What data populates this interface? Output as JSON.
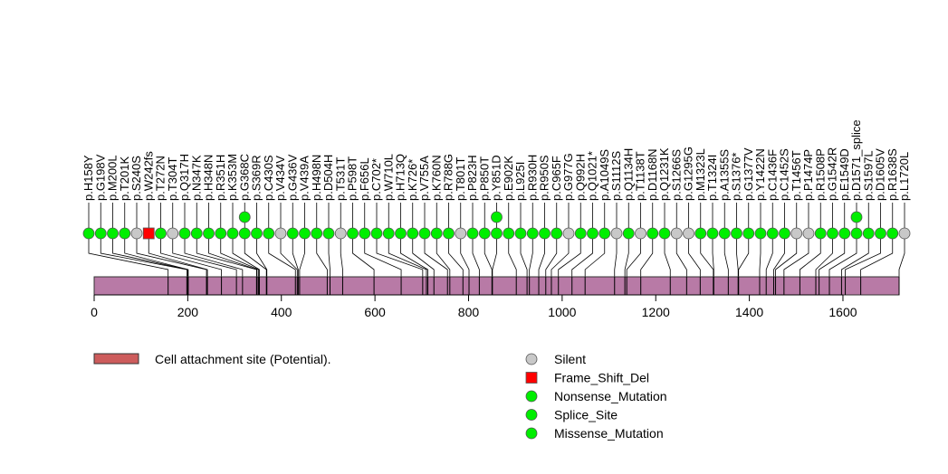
{
  "chart_data": {
    "type": "lollipop",
    "protein_length": 1720,
    "axis": {
      "min": 0,
      "max": 1720,
      "ticks": [
        0,
        200,
        400,
        600,
        800,
        1000,
        1200,
        1400,
        1600
      ]
    },
    "colors": {
      "protein_bar": "#b87aa6",
      "domain": "#cd5c5c",
      "Silent": "#c8c8c8",
      "Frame_Shift_Del": "#ff0000",
      "Nonsense_Mutation": "#00ee00",
      "Splice_Site": "#00ee00",
      "Missense_Mutation": "#00ee00"
    },
    "domains": [
      {
        "name": "Cell attachment site (Potential).",
        "start": 1,
        "end": 1720
      }
    ],
    "mutations": [
      {
        "label": "p.H158Y",
        "pos": 158,
        "type": "Missense_Mutation",
        "stack": 1
      },
      {
        "label": "p.G198V",
        "pos": 198,
        "type": "Missense_Mutation",
        "stack": 1
      },
      {
        "label": "p.M200L",
        "pos": 200,
        "type": "Missense_Mutation",
        "stack": 1
      },
      {
        "label": "p.T201K",
        "pos": 201,
        "type": "Missense_Mutation",
        "stack": 1
      },
      {
        "label": "p.S240S",
        "pos": 240,
        "type": "Silent",
        "stack": 1
      },
      {
        "label": "p.W242fs",
        "pos": 242,
        "type": "Frame_Shift_Del",
        "stack": 1
      },
      {
        "label": "p.T272N",
        "pos": 272,
        "type": "Missense_Mutation",
        "stack": 1
      },
      {
        "label": "p.T304T",
        "pos": 304,
        "type": "Silent",
        "stack": 1
      },
      {
        "label": "p.Q317H",
        "pos": 317,
        "type": "Missense_Mutation",
        "stack": 1
      },
      {
        "label": "p.N347K",
        "pos": 347,
        "type": "Missense_Mutation",
        "stack": 1
      },
      {
        "label": "p.H348N",
        "pos": 348,
        "type": "Missense_Mutation",
        "stack": 1
      },
      {
        "label": "p.R351H",
        "pos": 351,
        "type": "Missense_Mutation",
        "stack": 1
      },
      {
        "label": "p.K353M",
        "pos": 353,
        "type": "Missense_Mutation",
        "stack": 1
      },
      {
        "label": "p.G368C",
        "pos": 368,
        "type": "Missense_Mutation",
        "stack": 2
      },
      {
        "label": "p.S369R",
        "pos": 369,
        "type": "Missense_Mutation",
        "stack": 1
      },
      {
        "label": "p.C430S",
        "pos": 430,
        "type": "Missense_Mutation",
        "stack": 1
      },
      {
        "label": "p.V434V",
        "pos": 434,
        "type": "Silent",
        "stack": 1
      },
      {
        "label": "p.G436V",
        "pos": 436,
        "type": "Missense_Mutation",
        "stack": 1
      },
      {
        "label": "p.V439A",
        "pos": 439,
        "type": "Missense_Mutation",
        "stack": 1
      },
      {
        "label": "p.H498N",
        "pos": 498,
        "type": "Missense_Mutation",
        "stack": 1
      },
      {
        "label": "p.D504H",
        "pos": 504,
        "type": "Missense_Mutation",
        "stack": 1
      },
      {
        "label": "p.T531T",
        "pos": 531,
        "type": "Silent",
        "stack": 1
      },
      {
        "label": "p.P598T",
        "pos": 598,
        "type": "Missense_Mutation",
        "stack": 1
      },
      {
        "label": "p.F656L",
        "pos": 656,
        "type": "Missense_Mutation",
        "stack": 1
      },
      {
        "label": "p.C702*",
        "pos": 702,
        "type": "Nonsense_Mutation",
        "stack": 1
      },
      {
        "label": "p.W710L",
        "pos": 710,
        "type": "Missense_Mutation",
        "stack": 1
      },
      {
        "label": "p.H713Q",
        "pos": 713,
        "type": "Missense_Mutation",
        "stack": 1
      },
      {
        "label": "p.K726*",
        "pos": 726,
        "type": "Nonsense_Mutation",
        "stack": 1
      },
      {
        "label": "p.V755A",
        "pos": 755,
        "type": "Missense_Mutation",
        "stack": 1
      },
      {
        "label": "p.K760N",
        "pos": 760,
        "type": "Missense_Mutation",
        "stack": 1
      },
      {
        "label": "p.R788G",
        "pos": 788,
        "type": "Missense_Mutation",
        "stack": 1
      },
      {
        "label": "p.T801T",
        "pos": 801,
        "type": "Silent",
        "stack": 1
      },
      {
        "label": "p.P823H",
        "pos": 823,
        "type": "Missense_Mutation",
        "stack": 1
      },
      {
        "label": "p.P850T",
        "pos": 850,
        "type": "Missense_Mutation",
        "stack": 1
      },
      {
        "label": "p.Y851D",
        "pos": 851,
        "type": "Missense_Mutation",
        "stack": 2
      },
      {
        "label": "p.E902K",
        "pos": 902,
        "type": "Missense_Mutation",
        "stack": 1
      },
      {
        "label": "p.L925I",
        "pos": 925,
        "type": "Missense_Mutation",
        "stack": 1
      },
      {
        "label": "p.R930H",
        "pos": 930,
        "type": "Missense_Mutation",
        "stack": 1
      },
      {
        "label": "p.R950S",
        "pos": 950,
        "type": "Missense_Mutation",
        "stack": 1
      },
      {
        "label": "p.C965F",
        "pos": 965,
        "type": "Missense_Mutation",
        "stack": 1
      },
      {
        "label": "p.G977G",
        "pos": 977,
        "type": "Silent",
        "stack": 1
      },
      {
        "label": "p.Q992H",
        "pos": 992,
        "type": "Missense_Mutation",
        "stack": 1
      },
      {
        "label": "p.Q1021*",
        "pos": 1021,
        "type": "Nonsense_Mutation",
        "stack": 1
      },
      {
        "label": "p.A1049S",
        "pos": 1049,
        "type": "Missense_Mutation",
        "stack": 1
      },
      {
        "label": "p.S1112S",
        "pos": 1112,
        "type": "Silent",
        "stack": 1
      },
      {
        "label": "p.Q1134H",
        "pos": 1134,
        "type": "Missense_Mutation",
        "stack": 1
      },
      {
        "label": "p.T1138T",
        "pos": 1138,
        "type": "Silent",
        "stack": 1
      },
      {
        "label": "p.D1168N",
        "pos": 1168,
        "type": "Missense_Mutation",
        "stack": 1
      },
      {
        "label": "p.Q1231K",
        "pos": 1231,
        "type": "Missense_Mutation",
        "stack": 1
      },
      {
        "label": "p.S1266S",
        "pos": 1266,
        "type": "Silent",
        "stack": 1
      },
      {
        "label": "p.G1295G",
        "pos": 1295,
        "type": "Silent",
        "stack": 1
      },
      {
        "label": "p.M1323L",
        "pos": 1323,
        "type": "Missense_Mutation",
        "stack": 1
      },
      {
        "label": "p.T1324I",
        "pos": 1324,
        "type": "Missense_Mutation",
        "stack": 1
      },
      {
        "label": "p.A1355S",
        "pos": 1355,
        "type": "Missense_Mutation",
        "stack": 1
      },
      {
        "label": "p.S1376*",
        "pos": 1376,
        "type": "Nonsense_Mutation",
        "stack": 1
      },
      {
        "label": "p.G1377V",
        "pos": 1377,
        "type": "Missense_Mutation",
        "stack": 1
      },
      {
        "label": "p.Y1422N",
        "pos": 1422,
        "type": "Missense_Mutation",
        "stack": 1
      },
      {
        "label": "p.C1436F",
        "pos": 1436,
        "type": "Missense_Mutation",
        "stack": 1
      },
      {
        "label": "p.C1452S",
        "pos": 1452,
        "type": "Missense_Mutation",
        "stack": 1
      },
      {
        "label": "p.T1456T",
        "pos": 1456,
        "type": "Silent",
        "stack": 1
      },
      {
        "label": "p.P1474P",
        "pos": 1474,
        "type": "Silent",
        "stack": 1
      },
      {
        "label": "p.R1508P",
        "pos": 1508,
        "type": "Missense_Mutation",
        "stack": 1
      },
      {
        "label": "p.G1542R",
        "pos": 1542,
        "type": "Missense_Mutation",
        "stack": 1
      },
      {
        "label": "p.E1549D",
        "pos": 1549,
        "type": "Missense_Mutation",
        "stack": 1
      },
      {
        "label": "p.D1571_splice",
        "pos": 1571,
        "type": "Splice_Site",
        "stack": 2
      },
      {
        "label": "p.S1597L",
        "pos": 1597,
        "type": "Missense_Mutation",
        "stack": 1
      },
      {
        "label": "p.D1605V",
        "pos": 1605,
        "type": "Missense_Mutation",
        "stack": 1
      },
      {
        "label": "p.R1638S",
        "pos": 1638,
        "type": "Missense_Mutation",
        "stack": 1
      },
      {
        "label": "p.L1720L",
        "pos": 1720,
        "type": "Silent",
        "stack": 1
      }
    ],
    "legend": {
      "domains": [
        {
          "name": "Cell attachment site (Potential).",
          "color": "#cd5c5c"
        }
      ],
      "mutation_types": [
        {
          "name": "Silent",
          "color": "#c8c8c8",
          "shape": "circle"
        },
        {
          "name": "Frame_Shift_Del",
          "color": "#ff0000",
          "shape": "square"
        },
        {
          "name": "Nonsense_Mutation",
          "color": "#00ee00",
          "shape": "circle"
        },
        {
          "name": "Splice_Site",
          "color": "#00ee00",
          "shape": "circle"
        },
        {
          "name": "Missense_Mutation",
          "color": "#00ee00",
          "shape": "circle"
        }
      ]
    }
  }
}
